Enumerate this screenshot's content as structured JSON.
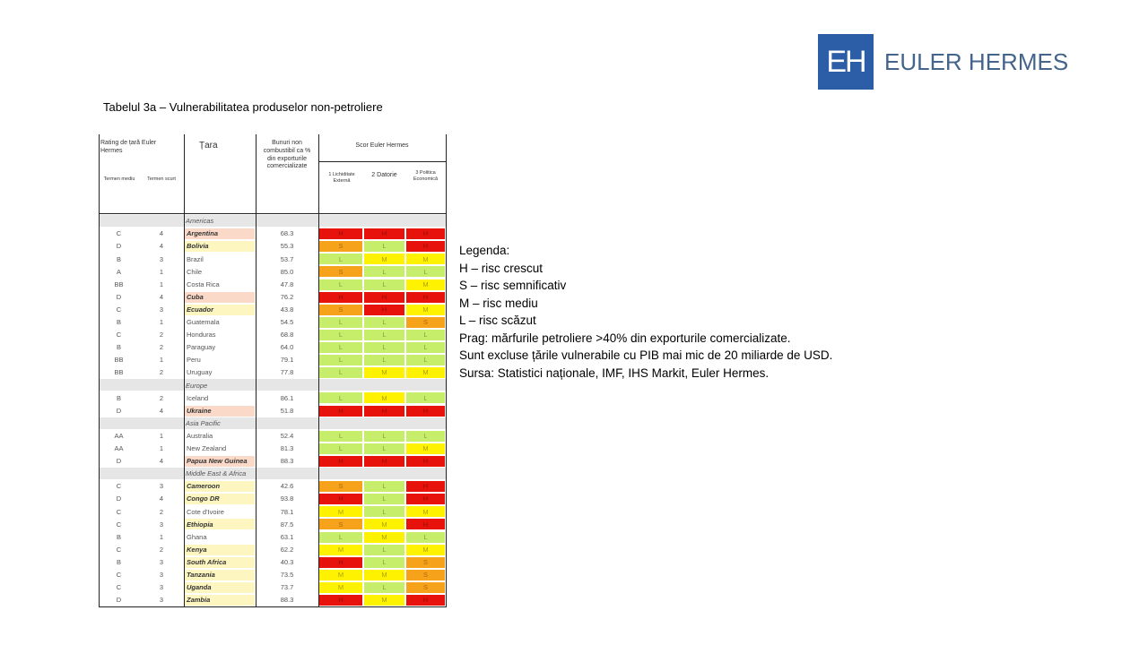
{
  "logo": {
    "mark": "EH",
    "name": "EULER HERMES"
  },
  "title": "Tabelul 3a – Vulnerabilitatea produselor non-petroliere",
  "table": {
    "header": {
      "rating": "Rating de țară Euler Hermes",
      "medium": "Termen mediu",
      "short": "Termen scurt",
      "country": "Țara",
      "share": "Bunuri non combustibil ca % din exporturile comercializate",
      "score": "Scor Euler Hermes",
      "scores": [
        "1 Lichiditate Externă",
        "2 Datorie",
        "3 Politica Economică"
      ]
    },
    "regions": [
      {
        "name": "Americas",
        "rows": [
          {
            "medium": "C",
            "short": "4",
            "country": "Argentina",
            "value": "68.3",
            "scores": [
              "H",
              "H",
              "H"
            ],
            "shade": "#fbd9c9"
          },
          {
            "medium": "D",
            "short": "4",
            "country": "Bolivia",
            "value": "55.3",
            "scores": [
              "S",
              "L",
              "H"
            ],
            "shade": "#fdf6c0"
          },
          {
            "medium": "B",
            "short": "3",
            "country": "Brazil",
            "value": "53.7",
            "scores": [
              "L",
              "M",
              "M"
            ]
          },
          {
            "medium": "A",
            "short": "1",
            "country": "Chile",
            "value": "85.0",
            "scores": [
              "S",
              "L",
              "L"
            ]
          },
          {
            "medium": "BB",
            "short": "1",
            "country": "Costa Rica",
            "value": "47.8",
            "scores": [
              "L",
              "L",
              "M"
            ]
          },
          {
            "medium": "D",
            "short": "4",
            "country": "Cuba",
            "value": "76.2",
            "scores": [
              "H",
              "H",
              "H"
            ],
            "shade": "#fbd9c9"
          },
          {
            "medium": "C",
            "short": "3",
            "country": "Ecuador",
            "value": "43.8",
            "scores": [
              "S",
              "H",
              "M"
            ],
            "shade": "#fdf6c0"
          },
          {
            "medium": "B",
            "short": "1",
            "country": "Guatemala",
            "value": "54.5",
            "scores": [
              "L",
              "L",
              "S"
            ]
          },
          {
            "medium": "C",
            "short": "2",
            "country": "Honduras",
            "value": "68.8",
            "scores": [
              "L",
              "L",
              "L"
            ]
          },
          {
            "medium": "B",
            "short": "2",
            "country": "Paraguay",
            "value": "64.0",
            "scores": [
              "L",
              "L",
              "L"
            ]
          },
          {
            "medium": "BB",
            "short": "1",
            "country": "Peru",
            "value": "79.1",
            "scores": [
              "L",
              "L",
              "L"
            ]
          },
          {
            "medium": "BB",
            "short": "2",
            "country": "Uruguay",
            "value": "77.8",
            "scores": [
              "L",
              "M",
              "M"
            ]
          }
        ]
      },
      {
        "name": "Europe",
        "rows": [
          {
            "medium": "B",
            "short": "2",
            "country": "Iceland",
            "value": "86.1",
            "scores": [
              "L",
              "M",
              "L"
            ]
          },
          {
            "medium": "D",
            "short": "4",
            "country": "Ukraine",
            "value": "51.8",
            "scores": [
              "H",
              "H",
              "H"
            ],
            "shade": "#fbd9c9"
          }
        ]
      },
      {
        "name": "Asia Pacific",
        "rows": [
          {
            "medium": "AA",
            "short": "1",
            "country": "Australia",
            "value": "52.4",
            "scores": [
              "L",
              "L",
              "L"
            ]
          },
          {
            "medium": "AA",
            "short": "1",
            "country": "New Zealand",
            "value": "81.3",
            "scores": [
              "L",
              "L",
              "M"
            ]
          },
          {
            "medium": "D",
            "short": "4",
            "country": "Papua New Guinea",
            "value": "88.3",
            "scores": [
              "H",
              "H",
              "H"
            ],
            "shade": "#fbd9c9"
          }
        ]
      },
      {
        "name": "Middle East & Africa",
        "rows": [
          {
            "medium": "C",
            "short": "3",
            "country": "Cameroon",
            "value": "42.6",
            "scores": [
              "S",
              "L",
              "H"
            ],
            "shade": "#fdf6c0"
          },
          {
            "medium": "D",
            "short": "4",
            "country": "Congo DR",
            "value": "93.8",
            "scores": [
              "H",
              "L",
              "H"
            ],
            "shade": "#fdf6c0"
          },
          {
            "medium": "C",
            "short": "2",
            "country": "Cote d'Ivoire",
            "value": "78.1",
            "scores": [
              "M",
              "L",
              "M"
            ]
          },
          {
            "medium": "C",
            "short": "3",
            "country": "Ethiopia",
            "value": "87.5",
            "scores": [
              "S",
              "M",
              "H"
            ],
            "shade": "#fdf6c0"
          },
          {
            "medium": "B",
            "short": "1",
            "country": "Ghana",
            "value": "63.1",
            "scores": [
              "L",
              "M",
              "L"
            ]
          },
          {
            "medium": "C",
            "short": "2",
            "country": "Kenya",
            "value": "62.2",
            "scores": [
              "M",
              "L",
              "M"
            ],
            "shade": "#fdf6c0"
          },
          {
            "medium": "B",
            "short": "3",
            "country": "South Africa",
            "value": "40.3",
            "scores": [
              "H",
              "L",
              "S"
            ],
            "shade": "#fdf6c0"
          },
          {
            "medium": "C",
            "short": "3",
            "country": "Tanzania",
            "value": "73.5",
            "scores": [
              "M",
              "M",
              "S"
            ],
            "shade": "#fdf6c0"
          },
          {
            "medium": "C",
            "short": "3",
            "country": "Uganda",
            "value": "73.7",
            "scores": [
              "M",
              "L",
              "S"
            ],
            "shade": "#fdf6c0"
          },
          {
            "medium": "D",
            "short": "3",
            "country": "Zambia",
            "value": "88.3",
            "scores": [
              "H",
              "M",
              "H"
            ],
            "shade": "#fdf6c0"
          }
        ]
      }
    ]
  },
  "legend": [
    "Legenda:",
    "H – risc crescut",
    "S – risc semnificativ",
    "M – risc mediu",
    "L – risc scăzut",
    "Prag: mărfurile petroliere >40% din exporturile  comercializate.",
    "Sunt excluse țările vulnerabile cu PIB mai mic de 20 miliarde de USD.",
    "Sursa: Statistici naționale, IMF, IHS Markit, Euler Hermes."
  ]
}
